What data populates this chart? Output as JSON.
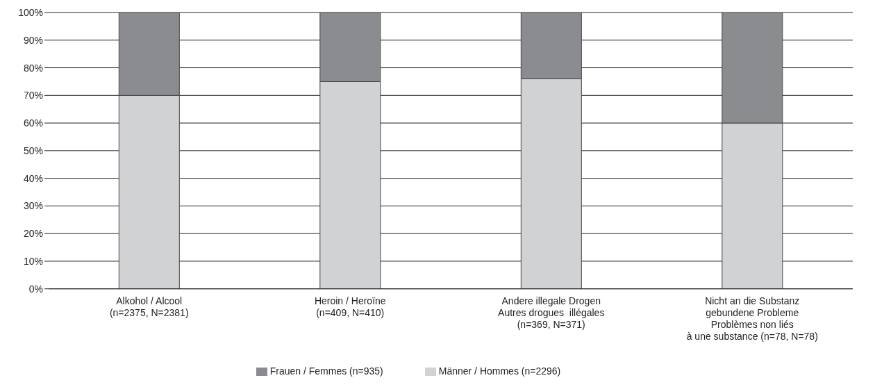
{
  "chart_data": {
    "type": "bar",
    "stacked": true,
    "categories": [
      "Alkohol / Alcool\n(n=2375, N=2381)",
      "Heroin / Heroïne\n(n=409, N=410)",
      "Andere illegale Drogen\nAutres drogues  illégales\n(n=369, N=371)",
      "Nicht an die Substanz\ngebundene Probleme\nProblèmes non liés\nà une substance (n=78, N=78)"
    ],
    "series": [
      {
        "name": "Männer / Hommes (n=2296)",
        "color": "#d1d2d4",
        "values": [
          70,
          75,
          76,
          60
        ]
      },
      {
        "name": "Frauen / Femmes (n=935)",
        "color": "#8b8c90",
        "values": [
          30,
          25,
          24,
          40
        ]
      }
    ],
    "ylim": [
      0,
      100
    ],
    "yticks": [
      {
        "value": 0,
        "label": "0%"
      },
      {
        "value": 10,
        "label": "10%"
      },
      {
        "value": 20,
        "label": "20%"
      },
      {
        "value": 30,
        "label": "30%"
      },
      {
        "value": 40,
        "label": "40%"
      },
      {
        "value": 50,
        "label": "50%"
      },
      {
        "value": 60,
        "label": "60%"
      },
      {
        "value": 70,
        "label": "70%"
      },
      {
        "value": 80,
        "label": "80%"
      },
      {
        "value": 90,
        "label": "90%"
      },
      {
        "value": 100,
        "label": "100%"
      }
    ],
    "grid": "y",
    "legend": "bottom"
  }
}
